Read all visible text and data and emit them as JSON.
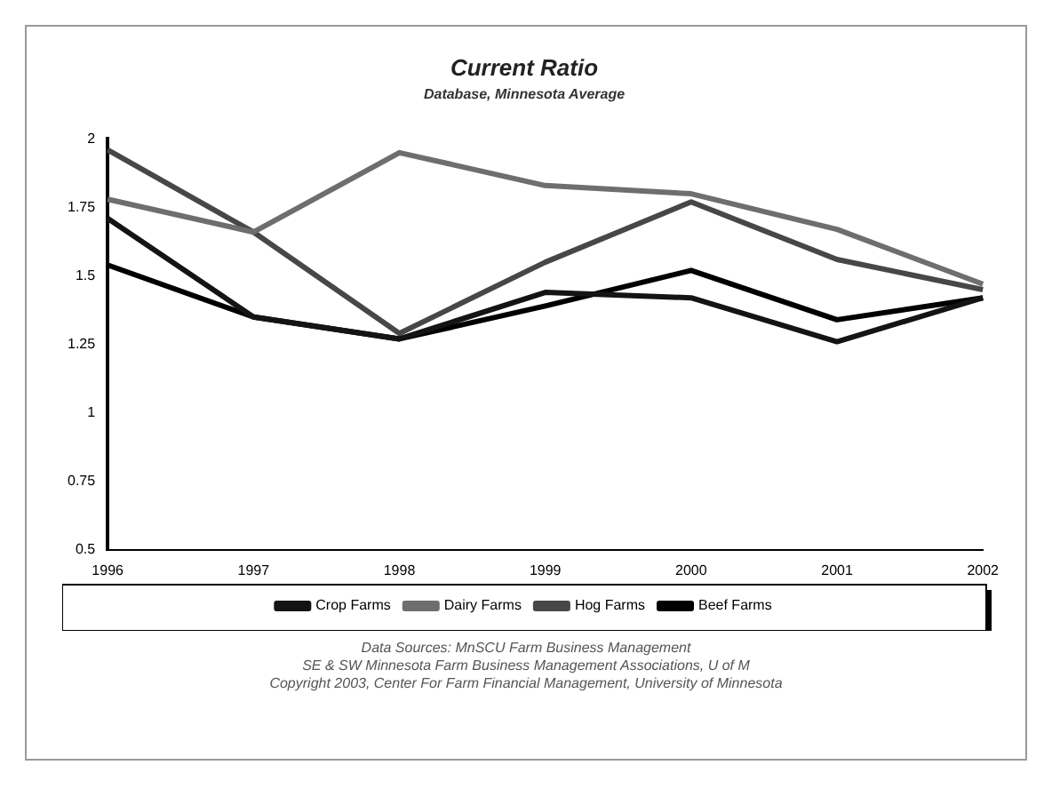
{
  "chart_data": {
    "type": "line",
    "title": "Current Ratio",
    "subtitle": "Database, Minnesota Average",
    "categories": [
      "1996",
      "1997",
      "1998",
      "1999",
      "2000",
      "2001",
      "2002"
    ],
    "series": [
      {
        "name": "Crop Farms",
        "color": "#141414",
        "values": [
          1.71,
          1.35,
          1.27,
          1.44,
          1.42,
          1.26,
          1.42
        ]
      },
      {
        "name": "Dairy Farms",
        "color": "#6e6e6e",
        "values": [
          1.78,
          1.66,
          1.95,
          1.83,
          1.8,
          1.67,
          1.47
        ]
      },
      {
        "name": "Hog Farms",
        "color": "#474747",
        "values": [
          1.96,
          1.66,
          1.29,
          1.55,
          1.77,
          1.56,
          1.45
        ]
      },
      {
        "name": "Beef Farms",
        "color": "#000000",
        "values": [
          1.54,
          1.35,
          1.27,
          1.39,
          1.52,
          1.34,
          1.42
        ]
      }
    ],
    "ylim": [
      0.5,
      2
    ],
    "yticks": [
      0.5,
      0.75,
      1,
      1.25,
      1.5,
      1.75,
      2
    ],
    "grid": false,
    "legend": "bottom",
    "marker": "none",
    "line_style": "solid",
    "annotations": [
      "Data Sources:  MnSCU Farm Business Management",
      "SE & SW Minnesota Farm Business Management Associations, U of M",
      "Copyright 2003, Center For Farm Financial Management, University of Minnesota"
    ]
  }
}
